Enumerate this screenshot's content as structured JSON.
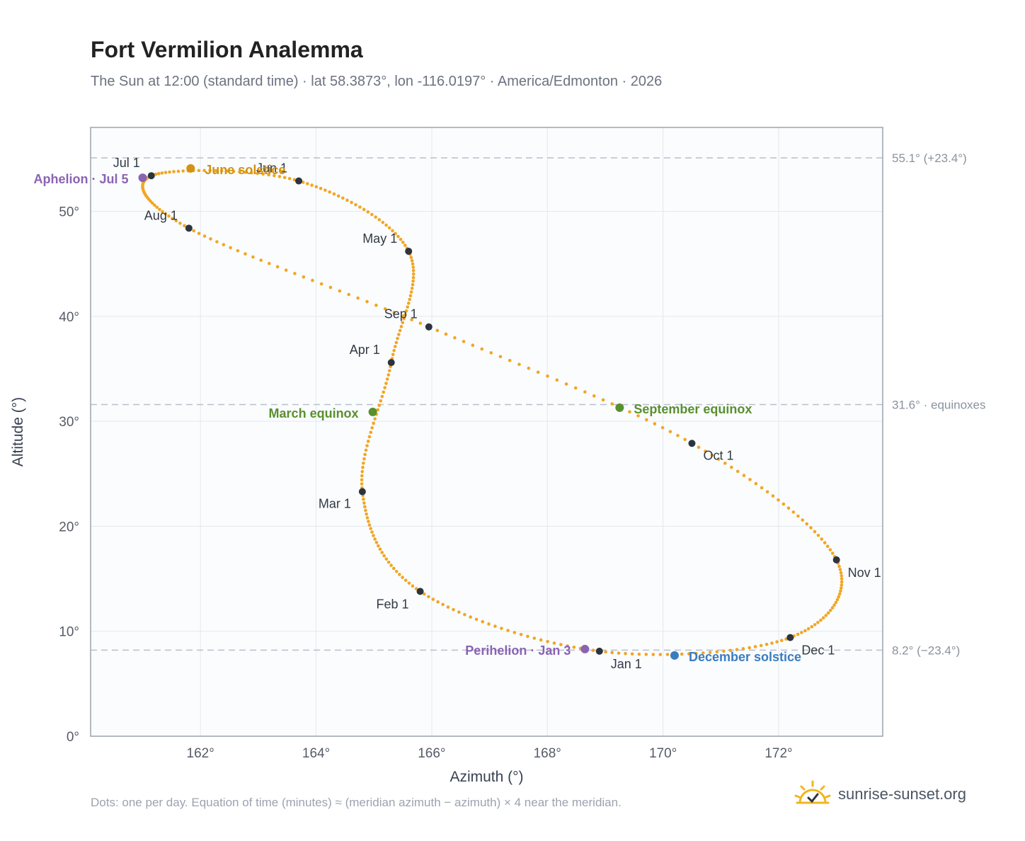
{
  "header": {
    "title": "Fort Vermilion Analemma",
    "subtitle": "The Sun at 12:00 (standard time) · lat 58.3873°, lon -116.0197° · America/Edmonton · 2026"
  },
  "footer": {
    "note": "Dots: one per day. Equation of time (minutes) ≈ (meridian azimuth − azimuth) × 4 near the meridian.",
    "brand": "sunrise-sunset.org",
    "brand_icon": "sun-logo-icon"
  },
  "chart_data": {
    "type": "scatter",
    "title": "Fort Vermilion Analemma",
    "xlabel": "Azimuth (°)",
    "ylabel": "Altitude (°)",
    "xlim": [
      160.1,
      173.8
    ],
    "ylim": [
      0,
      58
    ],
    "x_ticks": [
      162,
      164,
      166,
      168,
      170,
      172
    ],
    "x_tick_labels": [
      "162°",
      "164°",
      "166°",
      "168°",
      "170°",
      "172°"
    ],
    "y_ticks": [
      0,
      10,
      20,
      30,
      40,
      50
    ],
    "y_tick_labels": [
      "0°",
      "10°",
      "20°",
      "30°",
      "40°",
      "50°"
    ],
    "grid": true,
    "colors": {
      "path": "#f2a623",
      "month": "#2d3440",
      "june": "#d4920f",
      "equinox": "#5a8f2e",
      "december": "#3a7cc0",
      "apsis": "#8a63b3",
      "ref_line": "#b7c0cc",
      "plot_bg": "#fafcfe",
      "frame": "#9aa3ae"
    },
    "reference_lines": [
      {
        "y": 55.1,
        "label": "55.1° (+23.4°)"
      },
      {
        "y": 31.6,
        "label": "31.6° · equinoxes"
      },
      {
        "y": 8.2,
        "label": "8.2° (−23.4°)"
      }
    ],
    "months": [
      {
        "label": "Jan 1",
        "x": 168.9,
        "y": 8.1
      },
      {
        "label": "Feb 1",
        "x": 165.8,
        "y": 13.8
      },
      {
        "label": "Mar 1",
        "x": 164.8,
        "y": 23.3
      },
      {
        "label": "Apr 1",
        "x": 165.3,
        "y": 35.6
      },
      {
        "label": "May 1",
        "x": 165.6,
        "y": 46.2
      },
      {
        "label": "Jun 1",
        "x": 163.7,
        "y": 52.9
      },
      {
        "label": "Jul 1",
        "x": 161.15,
        "y": 53.4
      },
      {
        "label": "Aug 1",
        "x": 161.8,
        "y": 48.4
      },
      {
        "label": "Sep 1",
        "x": 165.95,
        "y": 39.0
      },
      {
        "label": "Oct 1",
        "x": 170.5,
        "y": 27.9
      },
      {
        "label": "Nov 1",
        "x": 173.0,
        "y": 16.8
      },
      {
        "label": "Dec 1",
        "x": 172.2,
        "y": 9.4
      }
    ],
    "events": [
      {
        "label": "June solstice",
        "x": 161.83,
        "y": 54.1,
        "kind": "june"
      },
      {
        "label": "March equinox",
        "x": 164.98,
        "y": 30.9,
        "kind": "equinox"
      },
      {
        "label": "September equinox",
        "x": 169.25,
        "y": 31.3,
        "kind": "equinox"
      },
      {
        "label": "December solstice",
        "x": 170.2,
        "y": 7.7,
        "kind": "december"
      },
      {
        "label": "Aphelion · Jul 5",
        "x": 161.0,
        "y": 53.2,
        "kind": "apsis"
      },
      {
        "label": "Perihelion · Jan 3",
        "x": 168.65,
        "y": 8.3,
        "kind": "apsis"
      }
    ]
  }
}
